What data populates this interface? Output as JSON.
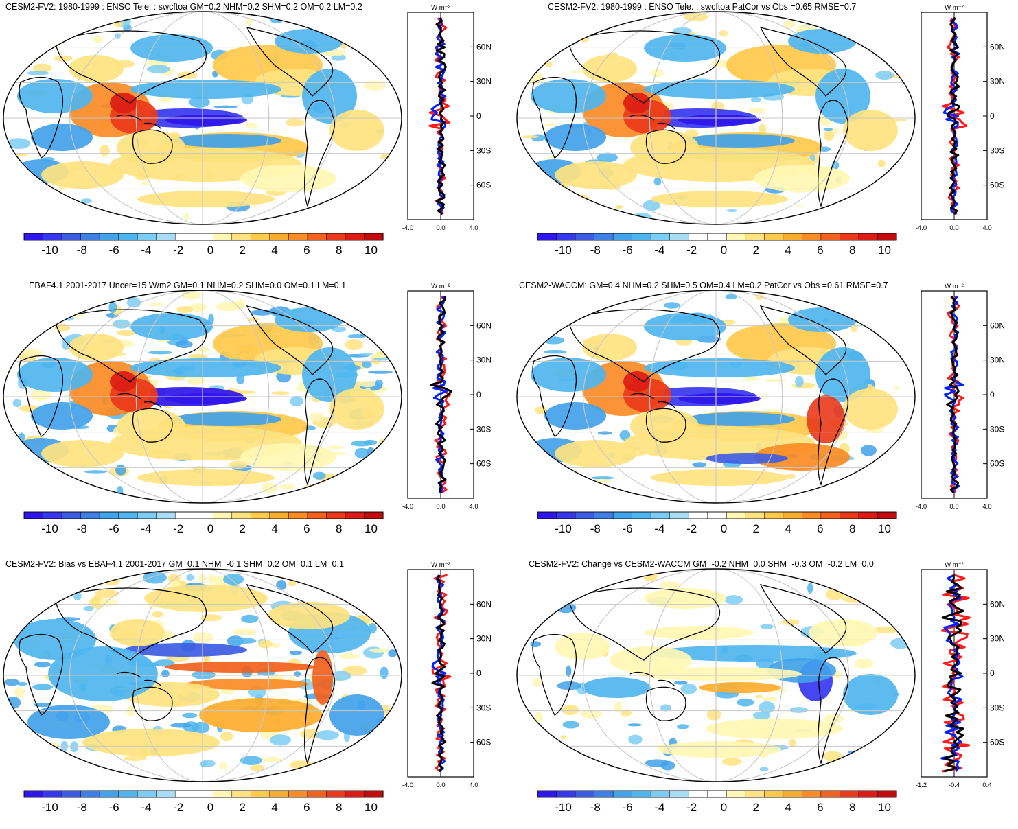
{
  "units": "W m⁻²",
  "colors": {
    "scale": [
      "#2f16ea",
      "#3737f0",
      "#3d5ce3",
      "#3f80e6",
      "#42a2ea",
      "#4fb5ef",
      "#7ccdf5",
      "#a9dcf5",
      "#ffffff",
      "#ffffff",
      "#fff7b3",
      "#ffe380",
      "#ffc94a",
      "#fdac2e",
      "#fa8b25",
      "#f2611d",
      "#ea3a19",
      "#dc1c14",
      "#c30b0d"
    ],
    "model": "#0022ff",
    "obs": "#ff1a1a",
    "diff": "#000000"
  },
  "colorbar": {
    "labels": [
      "-10",
      "-8",
      "-6",
      "-4",
      "-2",
      "0",
      "2",
      "4",
      "6",
      "8",
      "10"
    ]
  },
  "panels": [
    {
      "id": "p1",
      "title": "CESM2-FV2: 1980-1999 : ENSO Tele. : swcftoa GM=0.2 NHM=0.2 SHM=0.2 OM=0.2 LM=0.2",
      "lat_labels": [
        "60N",
        "30N",
        "0",
        "30S",
        "60S"
      ],
      "x_labels": [
        "-4.0",
        "0.0",
        "4.0"
      ],
      "units_label": "W m⁻²"
    },
    {
      "id": "p2",
      "title": "CESM2-FV2: 1980-1999 : ENSO Tele. : swcftoa PatCor vs Obs =0.65 RMSE=0.7",
      "lat_labels": [
        "60N",
        "30N",
        "0",
        "30S",
        "60S"
      ],
      "x_labels": [
        "-4.0",
        "0.0",
        "4.0"
      ],
      "units_label": "W m⁻²"
    },
    {
      "id": "p3",
      "title": "EBAF4.1 2001-2017 Uncer=15 W/m2 GM=0.1 NHM=0.2 SHM=0.0 OM=0.1 LM=0.1",
      "lat_labels": [
        "60N",
        "30N",
        "0",
        "30S",
        "60S"
      ],
      "x_labels": [
        "-4.0",
        "0.0",
        "4.0"
      ],
      "units_label": "W m⁻²"
    },
    {
      "id": "p4",
      "title": "CESM2-WACCM: GM=0.4 NHM=0.2 SHM=0.5 OM=0.4 LM=0.2 PatCor vs Obs =0.61 RMSE=0.7",
      "lat_labels": [
        "60N",
        "30N",
        "0",
        "30S",
        "60S"
      ],
      "x_labels": [
        "-4.0",
        "0.0",
        "4.0"
      ],
      "units_label": "W m⁻²"
    },
    {
      "id": "p5",
      "title": "CESM2-FV2: Bias vs EBAF4.1 2001-2017 GM=0.1 NHM=-0.1 SHM=0.2 OM=0.1 LM=0.1",
      "lat_labels": [
        "60N",
        "30N",
        "0",
        "30S",
        "60S"
      ],
      "x_labels": [
        "-4.0",
        "0.0",
        "4.0"
      ],
      "units_label": "W m⁻²"
    },
    {
      "id": "p6",
      "title": "CESM2-FV2: Change vs CESM2-WACCM GM=-0.2 NHM=0.0 SHM=-0.3 OM=-0.2 LM=0.0",
      "lat_labels": [
        "60N",
        "30N",
        "0",
        "30S",
        "60S"
      ],
      "x_labels": [
        "-1.2",
        "-0.4",
        "0.4"
      ],
      "units_label": "W m⁻²"
    }
  ]
}
